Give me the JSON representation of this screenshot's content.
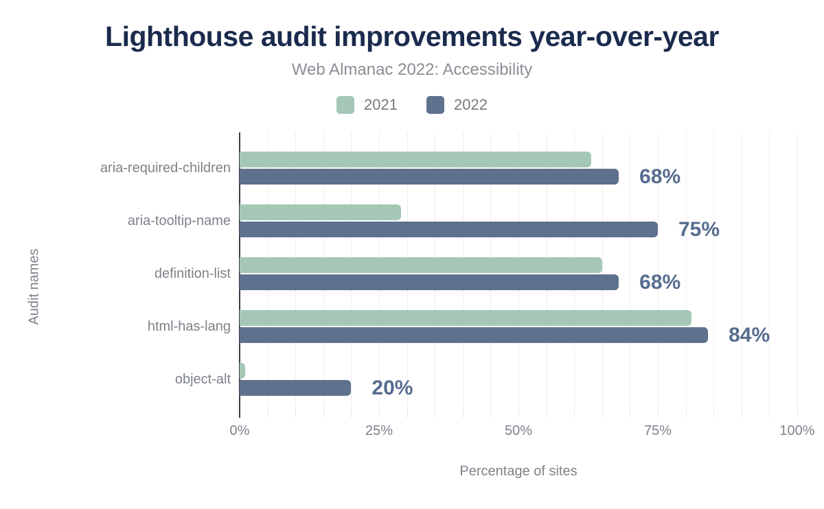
{
  "chart_data": {
    "type": "bar",
    "orientation": "horizontal",
    "title": "Lighthouse audit improvements year-over-year",
    "subtitle": "Web Almanac 2022: Accessibility",
    "xlabel": "Percentage of sites",
    "ylabel": "Audit names",
    "xlim": [
      0,
      100
    ],
    "x_ticks": [
      {
        "value": 0,
        "label": "0%"
      },
      {
        "value": 25,
        "label": "25%"
      },
      {
        "value": 50,
        "label": "50%"
      },
      {
        "value": 75,
        "label": "75%"
      },
      {
        "value": 100,
        "label": "100%"
      }
    ],
    "grid": {
      "vertical": true,
      "step_percent": 5
    },
    "legend_position": "top",
    "categories": [
      "aria-required-children",
      "aria-tooltip-name",
      "definition-list",
      "html-has-lang",
      "object-alt"
    ],
    "series": [
      {
        "name": "2021",
        "color": "#a5c8b6",
        "values": [
          63,
          29,
          65,
          81,
          1
        ]
      },
      {
        "name": "2022",
        "color": "#5e718d",
        "values": [
          68,
          75,
          68,
          84,
          20
        ],
        "value_labels": [
          "68%",
          "75%",
          "68%",
          "84%",
          "20%"
        ]
      }
    ]
  },
  "colors": {
    "title": "#1b2b4d",
    "subtitle": "#8a8e94",
    "legend_text": "#77797f",
    "axis_text": "#7d8289",
    "value_label": "#566c8e",
    "gridline": "#ededed",
    "axis_line": "#343c48",
    "background": "#ffffff"
  }
}
